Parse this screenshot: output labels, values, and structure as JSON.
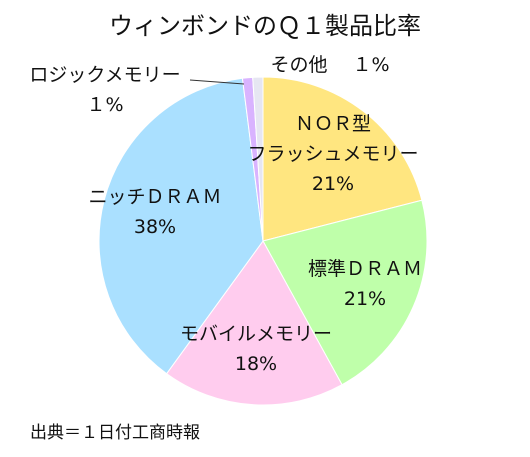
{
  "chart_data": {
    "type": "pie",
    "title": "ウィンボンドのＱ１製品比率",
    "source": "出典＝１日付工商時報",
    "slices": [
      {
        "label_lines": [
          "ＮＯＲ型",
          "フラッシュメモリー"
        ],
        "value": 21,
        "value_label": "21%",
        "color": "#FFE680"
      },
      {
        "label_lines": [
          "標準ＤＲＡＭ"
        ],
        "value": 21,
        "value_label": "21%",
        "color": "#BFFFAA"
      },
      {
        "label_lines": [
          "モバイルメモリー"
        ],
        "value": 18,
        "value_label": "18%",
        "color": "#FFCCEE"
      },
      {
        "label_lines": [
          "ニッチＤＲＡＭ"
        ],
        "value": 38,
        "value_label": "38%",
        "color": "#AAE0FF"
      },
      {
        "label_lines": [
          "ロジックメモリー"
        ],
        "value": 1,
        "value_label": "１%",
        "color": "#D9B3FF"
      },
      {
        "label_lines": [
          "その他"
        ],
        "value": 1,
        "value_label": "１%",
        "color": "#E6E6F2"
      }
    ]
  }
}
